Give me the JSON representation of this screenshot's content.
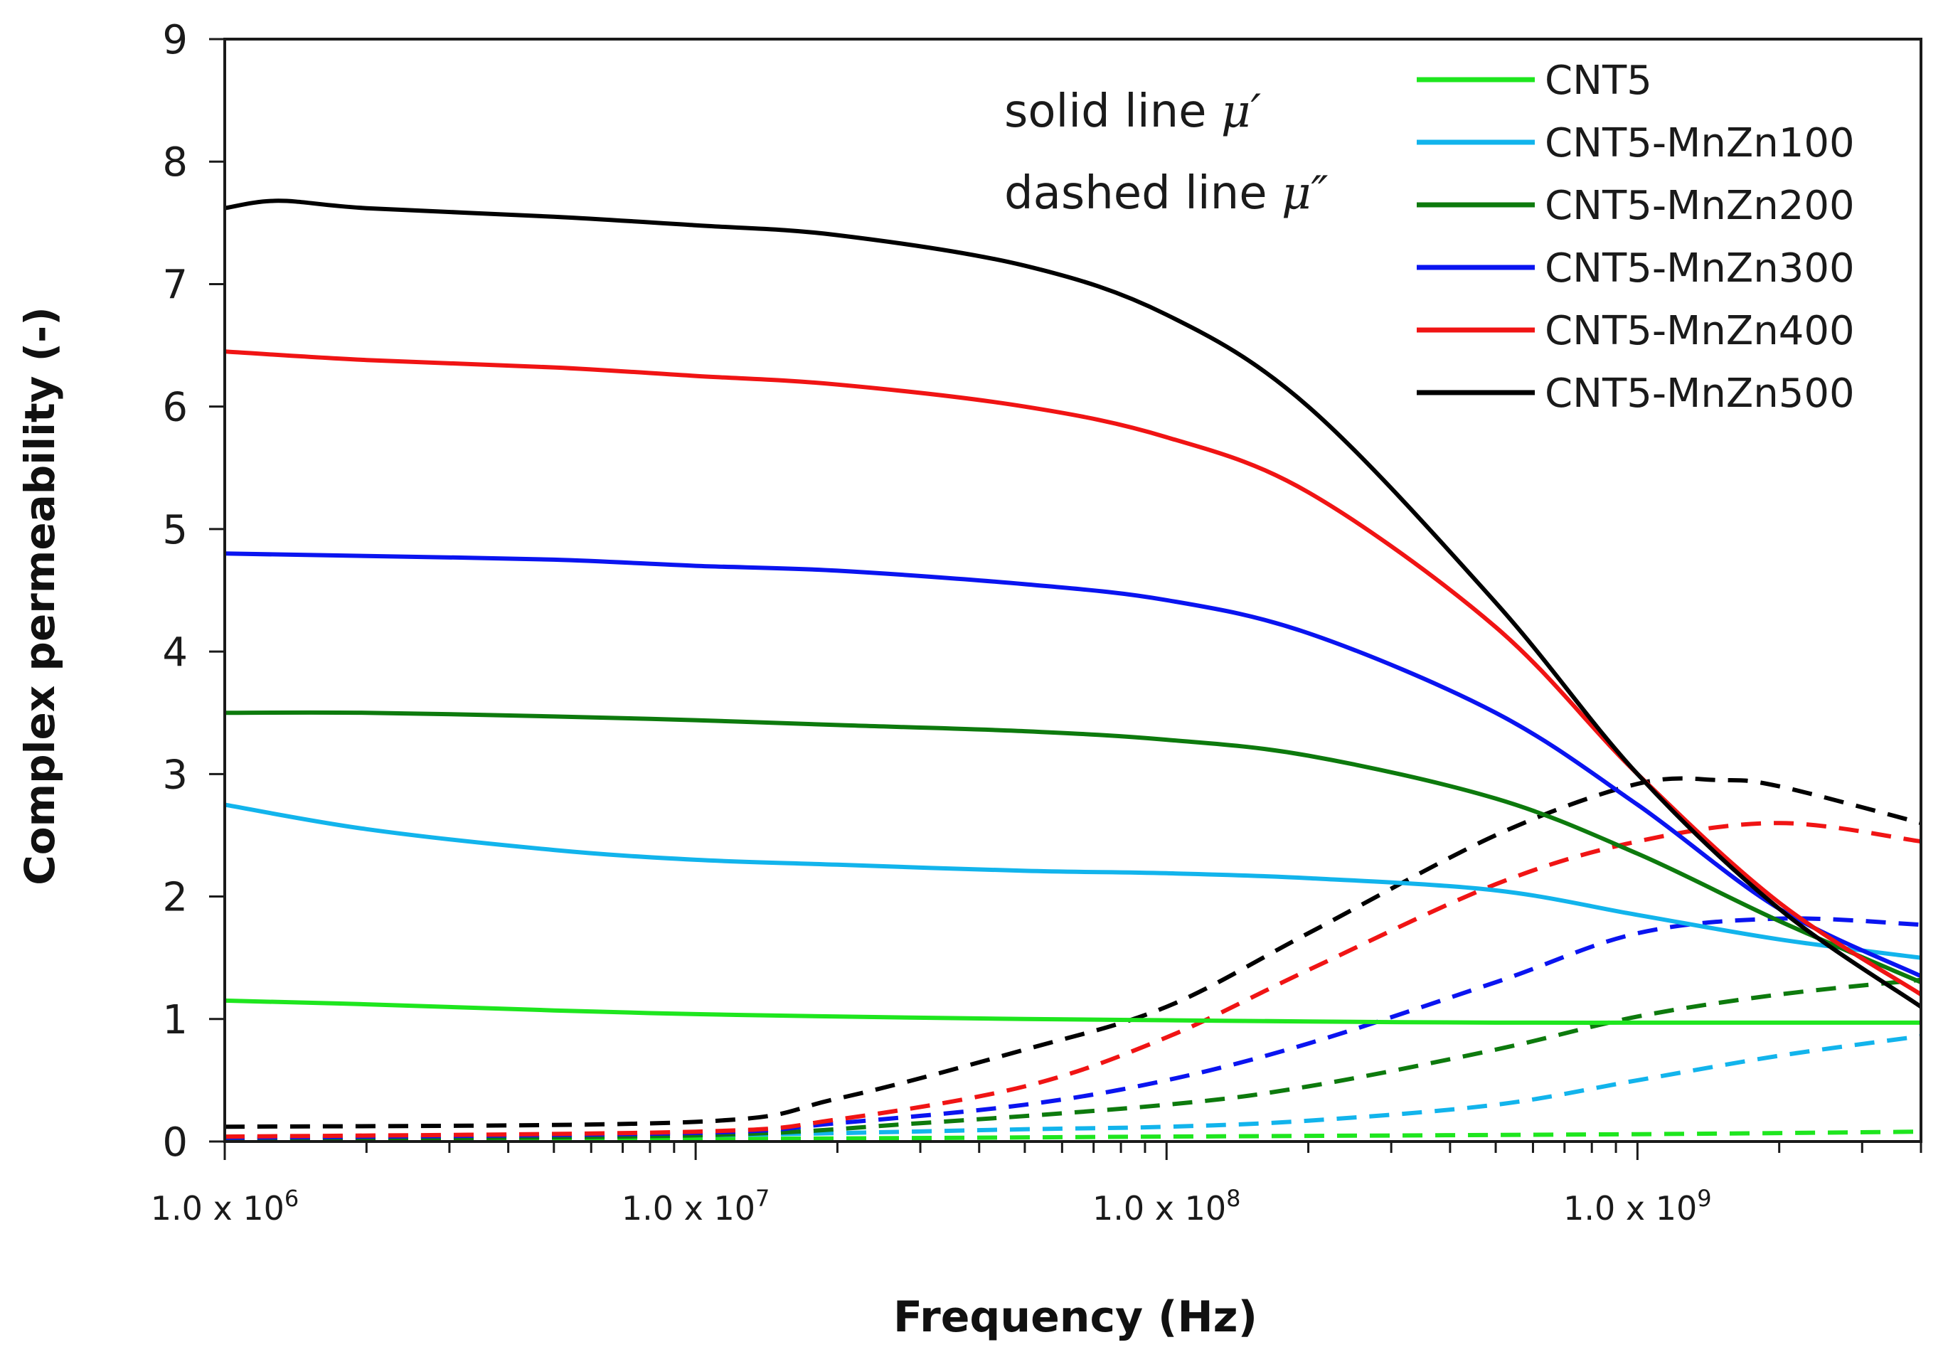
{
  "chart_data": {
    "type": "line",
    "title": "",
    "xlabel": "Frequency (Hz)",
    "ylabel": "Complex permeability (-)",
    "xscale": "log",
    "xlim": [
      1000000,
      4000000000
    ],
    "ylim": [
      0,
      9
    ],
    "yticks": [
      0,
      1,
      2,
      3,
      4,
      5,
      6,
      7,
      8,
      9
    ],
    "xticks": [
      {
        "value": 1000000,
        "mantissa": "1.0 x 10",
        "exp": "6"
      },
      {
        "value": 10000000,
        "mantissa": "1.0 x 10",
        "exp": "7"
      },
      {
        "value": 100000000,
        "mantissa": "1.0 x 10",
        "exp": "8"
      },
      {
        "value": 1000000000,
        "mantissa": "1.0 x 10",
        "exp": "9"
      }
    ],
    "grid": false,
    "legend_position": "top-right",
    "annotations": [
      {
        "text": "solid line",
        "symbol": "μ′"
      },
      {
        "text": "dashed line",
        "symbol": "μ″"
      }
    ],
    "series": [
      {
        "name": "CNT5",
        "color": "#1ee61e",
        "mu_real": {
          "x": [
            1000000.0,
            2000000.0,
            5000000.0,
            10000000.0,
            20000000.0,
            50000000.0,
            100000000.0,
            200000000.0,
            500000000.0,
            1000000000.0,
            2000000000.0,
            4000000000.0
          ],
          "y": [
            1.15,
            1.12,
            1.07,
            1.04,
            1.02,
            1.0,
            0.99,
            0.98,
            0.97,
            0.97,
            0.97,
            0.97
          ]
        },
        "mu_imag": {
          "x": [
            1000000.0,
            10000000.0,
            100000000.0,
            1000000000.0,
            4000000000.0
          ],
          "y": [
            0.01,
            0.02,
            0.04,
            0.06,
            0.08
          ]
        }
      },
      {
        "name": "CNT5-MnZn100",
        "color": "#12b4ec",
        "mu_real": {
          "x": [
            1000000.0,
            2000000.0,
            5000000.0,
            10000000.0,
            20000000.0,
            50000000.0,
            100000000.0,
            200000000.0,
            500000000.0,
            1000000000.0,
            2000000000.0,
            4000000000.0
          ],
          "y": [
            2.75,
            2.55,
            2.38,
            2.3,
            2.26,
            2.21,
            2.19,
            2.15,
            2.05,
            1.85,
            1.65,
            1.5
          ]
        },
        "mu_imag": {
          "x": [
            1000000.0,
            10000000.0,
            50000000.0,
            100000000.0,
            200000000.0,
            500000000.0,
            1000000000.0,
            2000000000.0,
            4000000000.0
          ],
          "y": [
            0.02,
            0.05,
            0.1,
            0.12,
            0.17,
            0.3,
            0.5,
            0.7,
            0.86
          ]
        }
      },
      {
        "name": "CNT5-MnZn200",
        "color": "#0d7a0d",
        "mu_real": {
          "x": [
            1000000.0,
            2000000.0,
            5000000.0,
            10000000.0,
            20000000.0,
            50000000.0,
            100000000.0,
            200000000.0,
            500000000.0,
            1000000000.0,
            2000000000.0,
            4000000000.0
          ],
          "y": [
            3.5,
            3.5,
            3.47,
            3.44,
            3.4,
            3.35,
            3.28,
            3.15,
            2.8,
            2.35,
            1.8,
            1.3
          ]
        },
        "mu_imag": {
          "x": [
            1000000.0,
            10000000.0,
            30000000.0,
            100000000.0,
            200000000.0,
            500000000.0,
            1000000000.0,
            2000000000.0,
            4000000000.0
          ],
          "y": [
            0.02,
            0.05,
            0.15,
            0.3,
            0.45,
            0.75,
            1.02,
            1.2,
            1.32
          ]
        }
      },
      {
        "name": "CNT5-MnZn300",
        "color": "#0a14f0",
        "mu_real": {
          "x": [
            1000000.0,
            2000000.0,
            5000000.0,
            10000000.0,
            20000000.0,
            50000000.0,
            100000000.0,
            200000000.0,
            500000000.0,
            1000000000.0,
            2000000000.0,
            4000000000.0
          ],
          "y": [
            4.8,
            4.78,
            4.75,
            4.7,
            4.66,
            4.55,
            4.42,
            4.15,
            3.5,
            2.75,
            1.9,
            1.35
          ]
        },
        "mu_imag": {
          "x": [
            1000000.0,
            10000000.0,
            20000000.0,
            50000000.0,
            100000000.0,
            200000000.0,
            500000000.0,
            1000000000.0,
            2000000000.0,
            4000000000.0
          ],
          "y": [
            0.03,
            0.07,
            0.15,
            0.3,
            0.5,
            0.8,
            1.3,
            1.7,
            1.82,
            1.77
          ]
        }
      },
      {
        "name": "CNT5-MnZn400",
        "color": "#f01414",
        "mu_real": {
          "x": [
            1000000.0,
            2000000.0,
            5000000.0,
            10000000.0,
            20000000.0,
            50000000.0,
            100000000.0,
            200000000.0,
            500000000.0,
            1000000000.0,
            2000000000.0,
            4000000000.0
          ],
          "y": [
            6.45,
            6.38,
            6.32,
            6.25,
            6.18,
            6.0,
            5.75,
            5.3,
            4.2,
            3.0,
            1.95,
            1.2
          ]
        },
        "mu_imag": {
          "x": [
            1000000.0,
            10000000.0,
            20000000.0,
            50000000.0,
            100000000.0,
            200000000.0,
            500000000.0,
            1000000000.0,
            2000000000.0,
            4000000000.0
          ],
          "y": [
            0.04,
            0.08,
            0.18,
            0.45,
            0.85,
            1.4,
            2.1,
            2.45,
            2.6,
            2.45
          ]
        }
      },
      {
        "name": "CNT5-MnZn500",
        "color": "#000000",
        "mu_real": {
          "x": [
            1000000.0,
            1300000.0,
            2000000.0,
            5000000.0,
            10000000.0,
            20000000.0,
            50000000.0,
            100000000.0,
            200000000.0,
            500000000.0,
            1000000000.0,
            2000000000.0,
            4000000000.0
          ],
          "y": [
            7.62,
            7.68,
            7.62,
            7.55,
            7.48,
            7.4,
            7.15,
            6.75,
            6.0,
            4.4,
            3.0,
            1.9,
            1.1
          ]
        },
        "mu_imag": {
          "x": [
            1000000.0,
            10000000.0,
            20000000.0,
            50000000.0,
            100000000.0,
            200000000.0,
            500000000.0,
            1000000000.0,
            1500000000.0,
            2000000000.0,
            4000000000.0
          ],
          "y": [
            0.12,
            0.16,
            0.35,
            0.75,
            1.1,
            1.7,
            2.5,
            2.92,
            2.95,
            2.9,
            2.6
          ]
        }
      }
    ]
  }
}
